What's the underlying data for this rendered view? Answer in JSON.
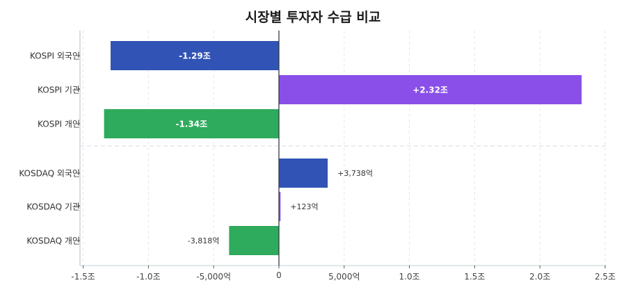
{
  "title": "시장별 투자자 수급 비교",
  "colors": {
    "foreign": "#3153b5",
    "institution": "#8a4fe8",
    "individual": "#2eab5c",
    "grid": "#e6e6e6",
    "zero_line": "#333a44",
    "spine": "#d8dde4"
  },
  "chart_data": {
    "type": "bar",
    "orientation": "horizontal",
    "title": "시장별 투자자 수급 비교",
    "xlabel": "",
    "ylabel": "",
    "unit": "억원",
    "categories": [
      "KOSPI 외국인",
      "KOSPI 기관",
      "KOSPI 개인",
      "KOSDAQ 외국인",
      "KOSDAQ 기관",
      "KOSDAQ 개인"
    ],
    "values": [
      -12900,
      23200,
      -13400,
      3738,
      123,
      -3818
    ],
    "value_labels": [
      "-1.29조",
      "+2.32조",
      "-1.34조",
      "+3,738억",
      "+123억",
      "-3,818억"
    ],
    "xlim": [
      -15500,
      25000
    ],
    "x_ticks": [
      -15000,
      -10000,
      -5000,
      0,
      5000,
      10000,
      15000,
      20000,
      25000
    ],
    "x_tick_labels": [
      "-1.5조",
      "-1.0조",
      "-5,000억",
      "0",
      "5,000억",
      "1.0조",
      "1.5조",
      "2.0조",
      "2.5조"
    ],
    "grid": true,
    "legend": null,
    "separator_between": [
      "KOSPI 개인",
      "KOSDAQ 외국인"
    ]
  },
  "rows": [
    {
      "label": "KOSPI 외국인",
      "value": -12900,
      "text": "-1.29조",
      "color": "#3153b5",
      "inside": true
    },
    {
      "label": "KOSPI 기관",
      "value": 23200,
      "text": "+2.32조",
      "color": "#8a4fe8",
      "inside": true
    },
    {
      "label": "KOSPI 개인",
      "value": -13400,
      "text": "-1.34조",
      "color": "#2eab5c",
      "inside": true
    },
    {
      "label": "KOSDAQ 외국인",
      "value": 3738,
      "text": "+3,738억",
      "color": "#3153b5",
      "inside": false
    },
    {
      "label": "KOSDAQ 기관",
      "value": 123,
      "text": "+123억",
      "color": "#8a4fe8",
      "inside": false
    },
    {
      "label": "KOSDAQ 개인",
      "value": -3818,
      "text": "-3,818억",
      "color": "#2eab5c",
      "inside": false
    }
  ]
}
